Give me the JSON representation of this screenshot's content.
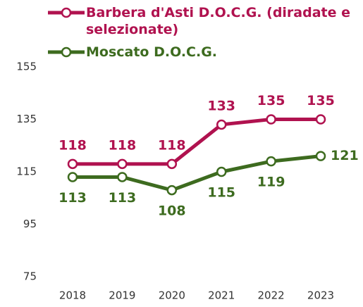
{
  "chart_data": {
    "type": "line",
    "categories": [
      "2018",
      "2019",
      "2020",
      "2021",
      "2022",
      "2023"
    ],
    "series": [
      {
        "name": "Barbera d'Asti D.O.C.G. (diradate e selezionate)",
        "color": "#b0124f",
        "values": [
          118,
          118,
          118,
          133,
          135,
          135
        ]
      },
      {
        "name": "Moscato D.O.C.G.",
        "color": "#3d6b1f",
        "values": [
          113,
          113,
          108,
          115,
          119,
          121
        ]
      }
    ],
    "ylim": [
      75,
      155
    ],
    "yticks": [
      75,
      95,
      115,
      135,
      155
    ],
    "grid": false
  }
}
